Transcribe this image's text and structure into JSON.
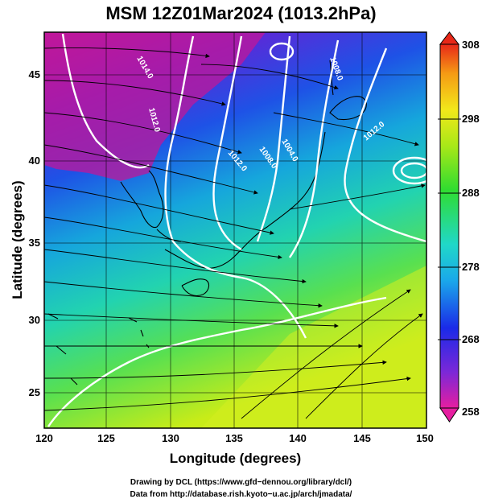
{
  "title": "MSM 12Z01Mar2024 (1013.2hPa)",
  "chart_data": {
    "type": "heatmap",
    "title": "MSM 12Z01Mar2024 (1013.2hPa)",
    "xlabel": "Longitude (degrees)",
    "ylabel": "Latitude  (degrees)",
    "xlim": [
      120,
      150
    ],
    "ylim": [
      22.4,
      47.6
    ],
    "x_ticks": [
      "120",
      "125",
      "130",
      "135",
      "140",
      "145",
      "150"
    ],
    "y_ticks": [
      "25",
      "30",
      "35",
      "40",
      "45"
    ],
    "colorbar": {
      "min": 258,
      "max": 308,
      "ticks": [
        "308",
        "298",
        "288",
        "278",
        "268",
        "258"
      ]
    },
    "contour_labels": [
      "1014.0",
      "1012.0",
      "1012.0",
      "1008.0",
      "1004.0",
      "1008.0",
      "1012.0"
    ]
  },
  "credits": {
    "line1": "Drawing by DCL (https://www.gfd−dennou.org/library/dcl/)",
    "line2": "Data from http://database.rish.kyoto−u.ac.jp/arch/jmadata/"
  }
}
